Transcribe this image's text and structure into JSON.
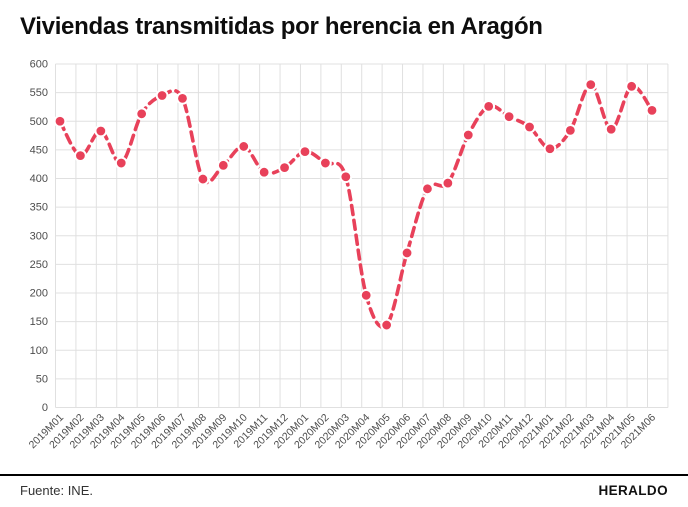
{
  "title": "Viviendas transmitidas por herencia en Aragón",
  "footer": {
    "source": "Fuente: INE.",
    "brand": "HERALDO"
  },
  "chart_data": {
    "type": "line",
    "title": "Viviendas transmitidas por herencia en Aragón",
    "categories": [
      "2019M01",
      "2019M02",
      "2019M03",
      "2019M04",
      "2019M05",
      "2019M06",
      "2019M07",
      "2019M08",
      "2019M09",
      "2019M10",
      "2019M11",
      "2019M12",
      "2020M01",
      "2020M02",
      "2020M03",
      "2020M04",
      "2020M05",
      "2020M06",
      "2020M07",
      "2020M08",
      "2020M09",
      "2020M10",
      "2020M11",
      "2020M12",
      "2021M01",
      "2021M02",
      "2021M03",
      "2021M04",
      "2021M05",
      "2021M06"
    ],
    "values": [
      500,
      440,
      483,
      427,
      513,
      545,
      540,
      399,
      423,
      456,
      411,
      419,
      447,
      427,
      403,
      196,
      144,
      270,
      382,
      392,
      476,
      526,
      508,
      490,
      452,
      484,
      564,
      486,
      561,
      519
    ],
    "xlabel": "",
    "ylabel": "",
    "ylim": [
      0,
      600
    ],
    "ytick_step": 50,
    "grid": true,
    "legend": false,
    "line_style": "dashed",
    "marker": "circle",
    "colors": {
      "line": "#e8415a",
      "marker": "#e8415a",
      "marker_halo": "#ffffff",
      "grid": "#e0e0e0",
      "tick_label": "#4d4d4d"
    }
  }
}
